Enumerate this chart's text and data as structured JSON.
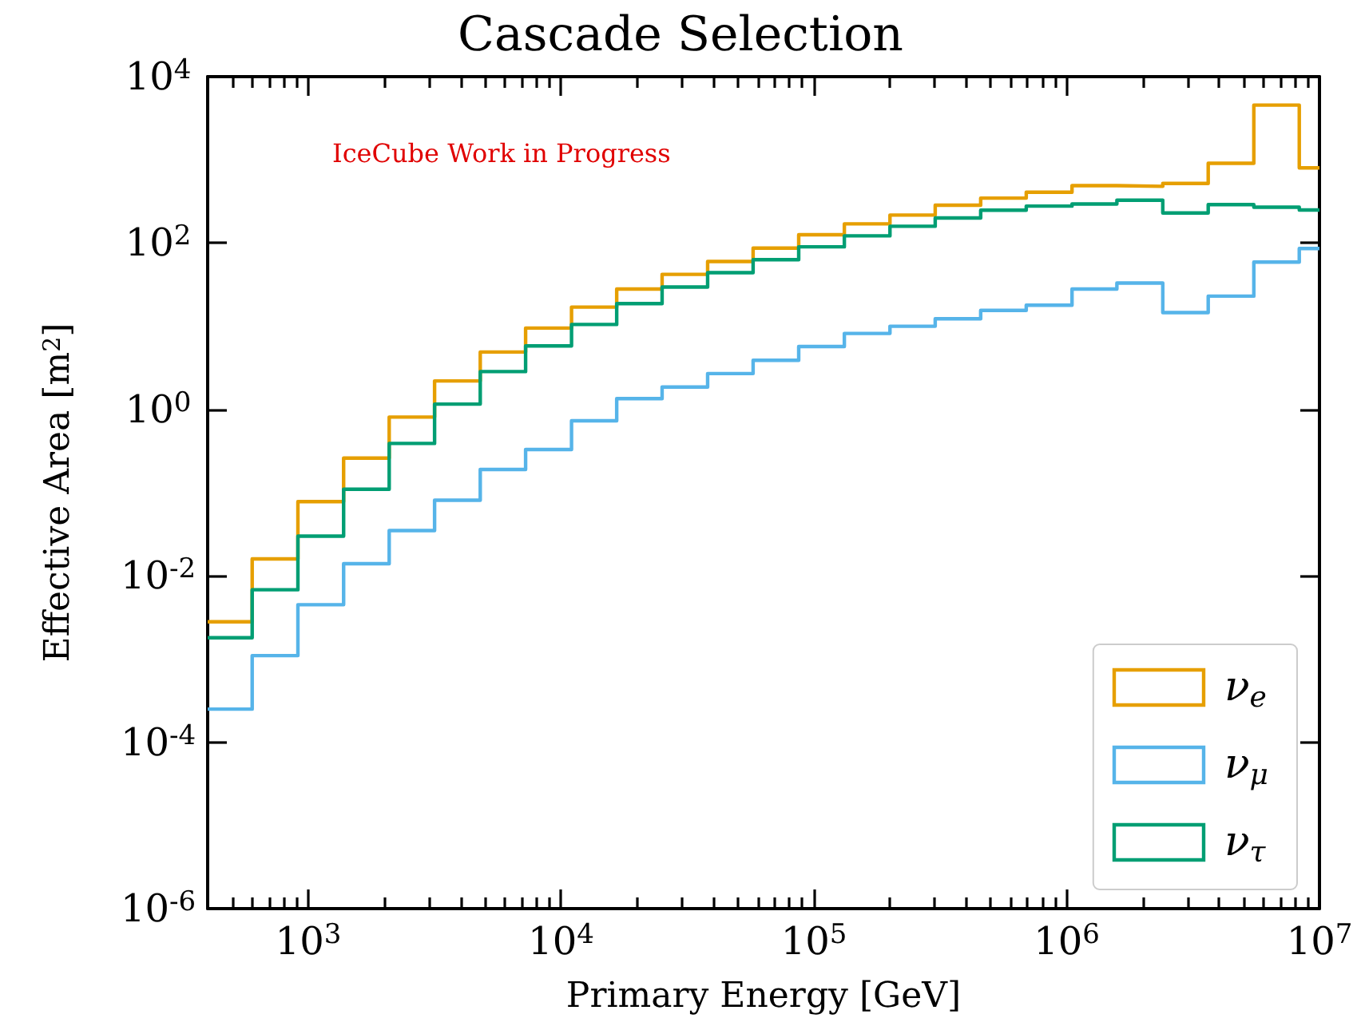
{
  "chart_data": {
    "type": "histogram",
    "title": "Cascade Selection",
    "xlabel": "Primary Energy [GeV]",
    "ylabel": "Effective Area [m$^{2}$]",
    "annotations": [
      "IceCube Work in Progress"
    ],
    "bins": [
      400,
      600,
      910,
      1380,
      2090,
      3160,
      4790,
      7240,
      11000,
      16600,
      25100,
      38000,
      57500,
      87100,
      132000,
      200000,
      302000,
      457000,
      692000,
      1050000,
      1580000,
      2400000,
      3630000,
      5500000,
      8320000,
      10000000
    ],
    "series": [
      {
        "name": "ν$_{e}$",
        "color": "#e69f00",
        "values": [
          0.0028,
          0.016,
          0.078,
          0.26,
          0.81,
          2.2,
          4.9,
          9.5,
          17,
          28,
          42,
          60,
          87,
          126,
          170,
          217,
          285,
          347,
          408,
          490,
          480,
          520,
          910,
          4550,
          800
        ]
      },
      {
        "name": "ν$_{μ}$",
        "color": "#56b4e9",
        "values": [
          0.00025,
          0.0011,
          0.0045,
          0.014,
          0.035,
          0.081,
          0.19,
          0.33,
          0.73,
          1.35,
          1.86,
          2.7,
          3.9,
          5.7,
          8.2,
          10,
          12.3,
          15.5,
          17.9,
          28,
          33,
          14.6,
          23,
          59,
          86
        ]
      },
      {
        "name": "ν$_{τ}$",
        "color": "#009e73",
        "values": [
          0.0018,
          0.0068,
          0.03,
          0.11,
          0.39,
          1.16,
          2.85,
          5.8,
          10.5,
          18.7,
          29.6,
          44,
          63,
          90,
          122,
          159,
          200,
          248,
          278,
          295,
          327,
          230,
          290,
          270,
          250
        ]
      }
    ],
    "log": "xy",
    "xlim": [
      400,
      10000000
    ],
    "xticks": [
      {
        "value": 500,
        "label": null
      },
      {
        "value": 600,
        "label": null
      },
      {
        "value": 700,
        "label": null
      },
      {
        "value": 800,
        "label": null
      },
      {
        "value": 900,
        "label": null
      },
      {
        "value": 1000,
        "label": "10$^{3}$"
      },
      {
        "value": 2000,
        "label": null
      },
      {
        "value": 3000,
        "label": null
      },
      {
        "value": 4000,
        "label": null
      },
      {
        "value": 5000,
        "label": null
      },
      {
        "value": 6000,
        "label": null
      },
      {
        "value": 7000,
        "label": null
      },
      {
        "value": 8000,
        "label": null
      },
      {
        "value": 9000,
        "label": null
      },
      {
        "value": 10000,
        "label": "10$^{4}$"
      },
      {
        "value": 20000,
        "label": null
      },
      {
        "value": 30000,
        "label": null
      },
      {
        "value": 40000,
        "label": null
      },
      {
        "value": 50000,
        "label": null
      },
      {
        "value": 60000,
        "label": null
      },
      {
        "value": 70000,
        "label": null
      },
      {
        "value": 80000,
        "label": null
      },
      {
        "value": 90000,
        "label": null
      },
      {
        "value": 100000,
        "label": "10$^{5}$"
      },
      {
        "value": 200000,
        "label": null
      },
      {
        "value": 300000,
        "label": null
      },
      {
        "value": 400000,
        "label": null
      },
      {
        "value": 500000,
        "label": null
      },
      {
        "value": 600000,
        "label": null
      },
      {
        "value": 700000,
        "label": null
      },
      {
        "value": 800000,
        "label": null
      },
      {
        "value": 900000,
        "label": null
      },
      {
        "value": 1000000,
        "label": "10$^{6}$"
      },
      {
        "value": 2000000,
        "label": null
      },
      {
        "value": 3000000,
        "label": null
      },
      {
        "value": 4000000,
        "label": null
      },
      {
        "value": 5000000,
        "label": null
      },
      {
        "value": 6000000,
        "label": null
      },
      {
        "value": 7000000,
        "label": null
      },
      {
        "value": 8000000,
        "label": null
      },
      {
        "value": 9000000,
        "label": null
      },
      {
        "value": 10000000,
        "label": "10$^{7}$"
      }
    ],
    "ylim": [
      1e-06,
      10000
    ],
    "yticks": [
      {
        "value": 1e-06,
        "label": "10$^{-6}$"
      },
      {
        "value": 0.0001,
        "label": "10$^{-4}$"
      },
      {
        "value": 0.01,
        "label": "10$^{-2}$"
      },
      {
        "value": 1,
        "label": "10$^{0}$"
      },
      {
        "value": 100,
        "label": "10$^{2}$"
      },
      {
        "value": 10000,
        "label": "10$^{4}$"
      }
    ],
    "grid": false,
    "legend": "bottom right"
  }
}
